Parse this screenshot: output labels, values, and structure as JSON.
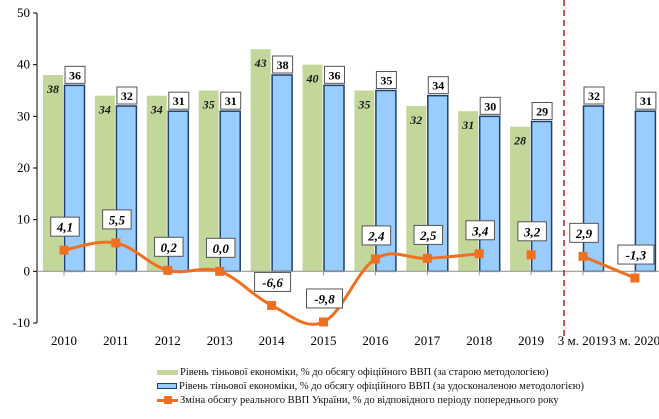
{
  "chart_data": {
    "type": "bar",
    "title": "",
    "xlabel": "",
    "ylabel": "",
    "ylim": [
      -10,
      50
    ],
    "yticks": [
      -10,
      0,
      10,
      20,
      30,
      40,
      50
    ],
    "grid": false,
    "legend_position": "bottom",
    "categories": [
      "2010",
      "2011",
      "2012",
      "2013",
      "2014",
      "2015",
      "2016",
      "2017",
      "2018",
      "2019",
      "3 м. 2019",
      "3 м. 2020"
    ],
    "series": [
      {
        "name": "Рівень тіньової економіки, % до обсягу офіційного ВВП (за старою методологією)",
        "type": "bar",
        "color": "#c4d79b",
        "values": [
          38,
          34,
          34,
          35,
          43,
          40,
          35,
          32,
          31,
          28,
          null,
          null
        ],
        "labels": [
          "38",
          "34",
          "34",
          "35",
          "43",
          "40",
          "35",
          "32",
          "31",
          "28",
          "",
          ""
        ]
      },
      {
        "name": "Рівень тіньової економіки, % до обсягу офіційного ВВП (за удосконаленою методологією)",
        "type": "bar",
        "color": "#99ccff",
        "border_color": "#1f3f6e",
        "values": [
          36,
          32,
          31,
          31,
          38,
          36,
          35,
          34,
          30,
          29,
          32,
          31
        ],
        "labels": [
          "36",
          "32",
          "31",
          "31",
          "38",
          "36",
          "35",
          "34",
          "30",
          "29",
          "32",
          "31"
        ]
      },
      {
        "name": "Зміна обсягу реального ВВП України, % до відповідного періоду попереднього року",
        "type": "line",
        "color": "#f07020",
        "values": [
          4.1,
          5.5,
          0.2,
          0.0,
          -6.6,
          -9.8,
          2.4,
          2.5,
          3.4,
          3.2,
          2.9,
          -1.3
        ],
        "labels": [
          "4,1",
          "5,5",
          "0,2",
          "0,0",
          "-6,6",
          "-9,8",
          "2,4",
          "2,5",
          "3,4",
          "3,2",
          "2,9",
          "-1,3"
        ],
        "connected_segments": [
          [
            0,
            8
          ],
          [
            10,
            11
          ]
        ]
      }
    ],
    "annotations": [
      {
        "type": "vertical-dashed-line",
        "between": [
          "2019",
          "3 м. 2019"
        ],
        "color": "#c0282d"
      }
    ]
  }
}
